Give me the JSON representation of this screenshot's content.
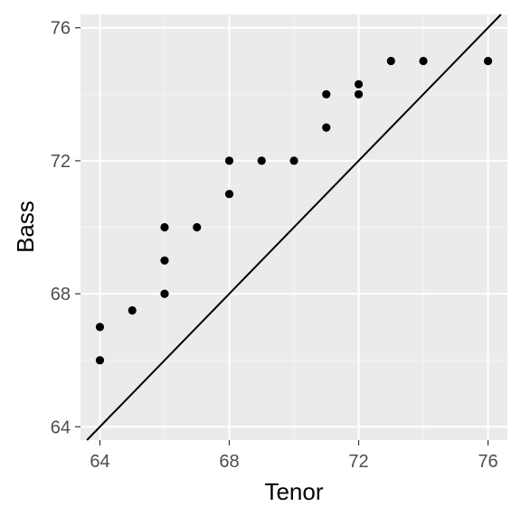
{
  "chart_data": {
    "type": "scatter",
    "title": "",
    "xlabel": "Tenor",
    "ylabel": "Bass",
    "xlim": [
      63.4,
      76.6
    ],
    "ylim": [
      63.6,
      76.4
    ],
    "xticks": [
      64,
      68,
      72,
      76
    ],
    "yticks": [
      64,
      68,
      72,
      76
    ],
    "xtick_labels": [
      "64",
      "68",
      "72",
      "76"
    ],
    "ytick_labels": [
      "64",
      "68",
      "72",
      "76"
    ],
    "grid": true,
    "legend": "none",
    "series": [
      {
        "points": [
          {
            "x": 64,
            "y": 66
          },
          {
            "x": 64,
            "y": 67
          },
          {
            "x": 65,
            "y": 67.5
          },
          {
            "x": 66,
            "y": 68
          },
          {
            "x": 66,
            "y": 69
          },
          {
            "x": 66,
            "y": 70
          },
          {
            "x": 67,
            "y": 70
          },
          {
            "x": 68,
            "y": 71
          },
          {
            "x": 68,
            "y": 72
          },
          {
            "x": 69,
            "y": 72
          },
          {
            "x": 70,
            "y": 72
          },
          {
            "x": 71,
            "y": 73
          },
          {
            "x": 71,
            "y": 74
          },
          {
            "x": 72,
            "y": 74
          },
          {
            "x": 72,
            "y": 74.3
          },
          {
            "x": 73,
            "y": 75
          },
          {
            "x": 74,
            "y": 75
          },
          {
            "x": 76,
            "y": 75
          }
        ]
      }
    ],
    "reference_line": {
      "slope": 1,
      "intercept": 0
    },
    "colors": {
      "panel_background": "#ebebeb",
      "grid_major": "#ffffff",
      "grid_minor": "#f5f5f5",
      "points": "#000000",
      "reference_line": "#000000",
      "tick_label": "#4d4d4d",
      "axis_title": "#000000"
    }
  }
}
